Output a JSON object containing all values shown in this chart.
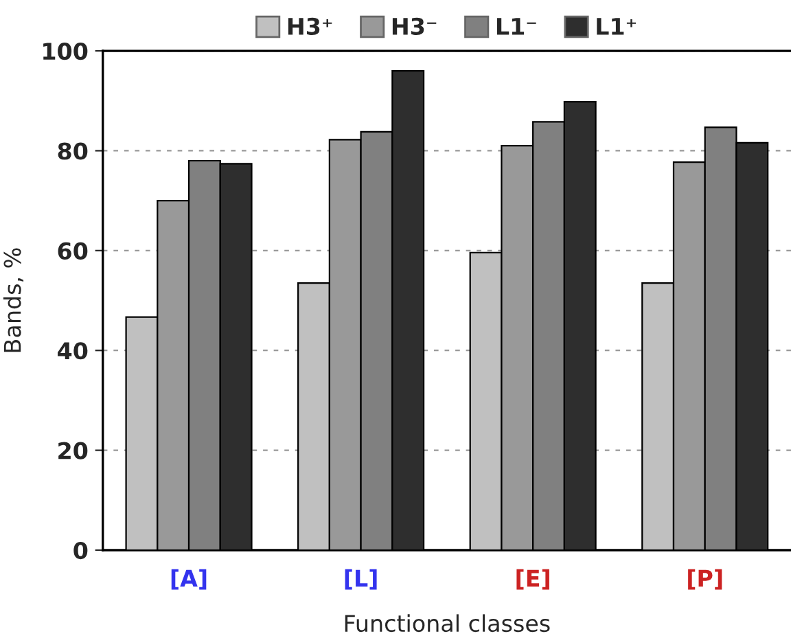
{
  "chart_data": {
    "type": "bar",
    "xlabel": "Functional classes",
    "ylabel": "Bands, %",
    "categories": [
      "[A]",
      "[L]",
      "[E]",
      "[P]"
    ],
    "series": [
      {
        "name": "H3⁺",
        "color": "#c0c0c0",
        "values": [
          46.7,
          53.5,
          59.6,
          53.5
        ]
      },
      {
        "name": "H3⁻",
        "color": "#999999",
        "values": [
          70,
          82.2,
          81,
          77.7
        ]
      },
      {
        "name": "L1⁻",
        "color": "#808080",
        "values": [
          78,
          83.8,
          85.8,
          84.7
        ]
      },
      {
        "name": "L1⁺",
        "color": "#2e2e2e",
        "values": [
          77.4,
          96,
          89.8,
          81.6
        ]
      }
    ],
    "ylim": [
      0,
      100
    ],
    "yticks": [
      0,
      20,
      40,
      60,
      80,
      100
    ],
    "grid": "y",
    "legend": "top"
  }
}
